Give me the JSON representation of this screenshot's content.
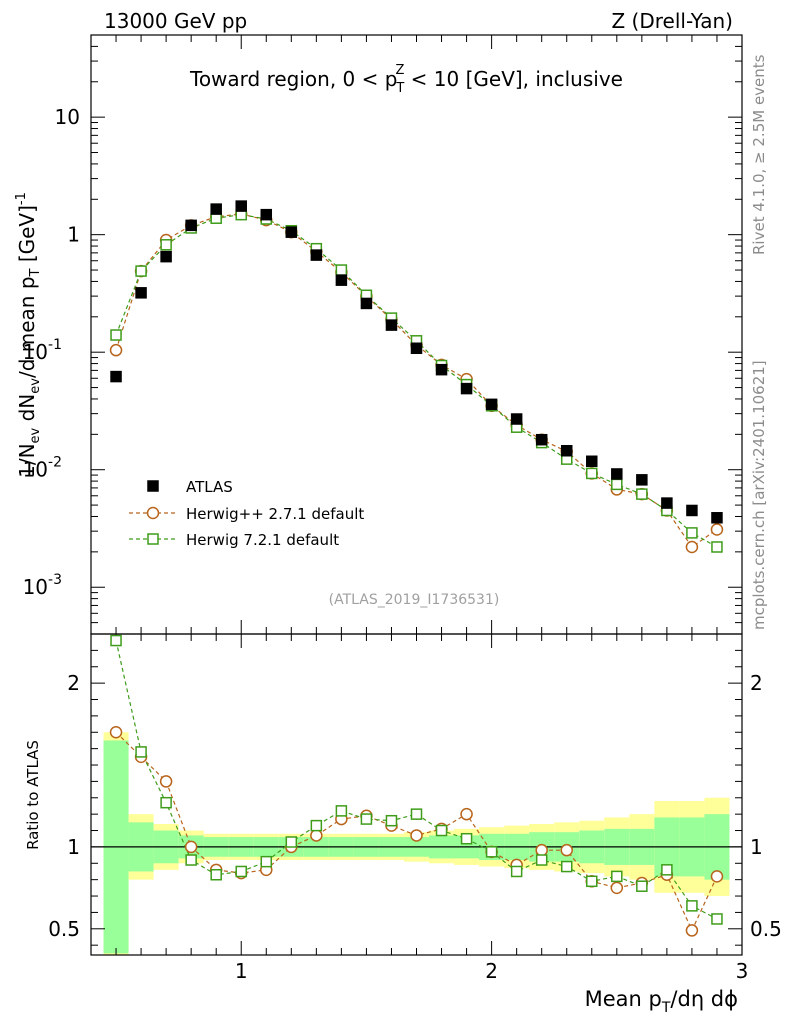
{
  "header": {
    "left": "13000 GeV pp",
    "right": "Z (Drell-Yan)",
    "plot_title_prefix": "Toward region, 0 < p",
    "plot_title_suffix": " < 10 [GeV], inclusive",
    "plot_title_sup": "Z",
    "plot_title_sub": "T"
  },
  "side_labels": {
    "rivet": "Rivet 4.1.0, ≥ 2.5M events",
    "mcplots": "mcplots.cern.ch [arXiv:2401.10621]"
  },
  "analysis_id": "(ATLAS_2019_I1736531)",
  "colors": {
    "data": "#000000",
    "herwigpp": "#b8651c",
    "herwig7": "#3e9c1a",
    "band_inner": "#99ff99",
    "band_outer": "#ffff99"
  },
  "chart_data": [
    {
      "type": "scatter",
      "panel": "main",
      "ylabel": "1/N_ev dN_ev/d mean p_T [GeV]^-1",
      "yscale": "log",
      "ylim": [
        0.0004,
        50
      ],
      "xlim": [
        0.4,
        3.0
      ],
      "y_tick_labels": [
        "10^-3",
        "10^-2",
        "10^-1",
        "1",
        "10"
      ],
      "x": [
        0.5,
        0.6,
        0.7,
        0.8,
        0.9,
        1.0,
        1.1,
        1.2,
        1.3,
        1.4,
        1.5,
        1.6,
        1.7,
        1.8,
        1.9,
        2.0,
        2.1,
        2.2,
        2.3,
        2.4,
        2.5,
        2.6,
        2.7,
        2.8,
        2.9
      ],
      "series": [
        {
          "name": "ATLAS",
          "marker": "filled-square",
          "values": [
            0.062,
            0.32,
            0.65,
            1.2,
            1.65,
            1.75,
            1.48,
            1.05,
            0.67,
            0.41,
            0.26,
            0.17,
            0.108,
            0.071,
            0.049,
            0.036,
            0.027,
            0.018,
            0.0145,
            0.0118,
            0.0092,
            0.0082,
            0.0052,
            0.0045,
            0.0039
          ]
        },
        {
          "name": "Herwig++ 2.7.1 default",
          "marker": "open-circle",
          "line": "dashed",
          "values": [
            0.104,
            0.49,
            0.9,
            1.2,
            1.42,
            1.5,
            1.33,
            1.05,
            0.72,
            0.48,
            0.3,
            0.19,
            0.115,
            0.078,
            0.059,
            0.035,
            0.024,
            0.018,
            0.0143,
            0.0093,
            0.0068,
            0.0062,
            0.0045,
            0.0022,
            0.0031
          ]
        },
        {
          "name": "Herwig 7.2.1 default",
          "marker": "open-square",
          "line": "dashed",
          "values": [
            0.14,
            0.49,
            0.82,
            1.14,
            1.38,
            1.48,
            1.36,
            1.08,
            0.76,
            0.5,
            0.305,
            0.195,
            0.125,
            0.077,
            0.053,
            0.035,
            0.023,
            0.017,
            0.0123,
            0.0093,
            0.0075,
            0.0062,
            0.0045,
            0.0029,
            0.0022
          ]
        }
      ],
      "legend": [
        "ATLAS",
        "Herwig++ 2.7.1 default",
        "Herwig 7.2.1 default"
      ],
      "legend_position": "bottom-left"
    },
    {
      "type": "scatter",
      "panel": "ratio",
      "ylabel": "Ratio to ATLAS",
      "xlabel": "Mean p_T/dη dϕ",
      "xlim": [
        0.4,
        3.0
      ],
      "ylim": [
        0.34,
        2.3
      ],
      "x_tick_labels": [
        "1",
        "2",
        "3"
      ],
      "y_tick_labels": [
        "0.5",
        "1",
        "2"
      ],
      "x": [
        0.5,
        0.6,
        0.7,
        0.8,
        0.9,
        1.0,
        1.1,
        1.2,
        1.3,
        1.4,
        1.5,
        1.6,
        1.7,
        1.8,
        1.9,
        2.0,
        2.1,
        2.2,
        2.3,
        2.4,
        2.5,
        2.6,
        2.7,
        2.8,
        2.9
      ],
      "band_edges": [
        0.45,
        0.55,
        0.65,
        0.75,
        0.85,
        0.95,
        1.05,
        1.15,
        1.25,
        1.35,
        1.45,
        1.55,
        1.65,
        1.75,
        1.85,
        1.95,
        2.05,
        2.15,
        2.25,
        2.35,
        2.45,
        2.55,
        2.65,
        2.75,
        2.85,
        2.95
      ],
      "band_inner": [
        0.65,
        0.15,
        0.1,
        0.07,
        0.06,
        0.06,
        0.06,
        0.06,
        0.06,
        0.06,
        0.06,
        0.06,
        0.06,
        0.07,
        0.07,
        0.08,
        0.08,
        0.09,
        0.09,
        0.1,
        0.11,
        0.11,
        0.18,
        0.18,
        0.2
      ],
      "band_outer": [
        0.7,
        0.2,
        0.14,
        0.1,
        0.08,
        0.08,
        0.08,
        0.08,
        0.08,
        0.08,
        0.08,
        0.08,
        0.09,
        0.1,
        0.11,
        0.12,
        0.13,
        0.14,
        0.15,
        0.16,
        0.18,
        0.2,
        0.28,
        0.28,
        0.3
      ],
      "series": [
        {
          "name": "Herwig++ 2.7.1 default",
          "values": [
            1.7,
            1.55,
            1.4,
            1.0,
            0.86,
            0.84,
            0.86,
            1.0,
            1.07,
            1.17,
            1.19,
            1.13,
            1.07,
            1.11,
            1.2,
            0.97,
            0.89,
            0.98,
            0.98,
            0.79,
            0.75,
            0.78,
            0.83,
            0.49,
            0.82
          ]
        },
        {
          "name": "Herwig 7.2.1 default",
          "values": [
            2.26,
            1.58,
            1.27,
            0.92,
            0.83,
            0.85,
            0.91,
            1.03,
            1.13,
            1.22,
            1.17,
            1.16,
            1.2,
            1.1,
            1.05,
            0.97,
            0.85,
            0.92,
            0.88,
            0.79,
            0.82,
            0.76,
            0.86,
            0.64,
            0.56
          ]
        }
      ]
    }
  ]
}
